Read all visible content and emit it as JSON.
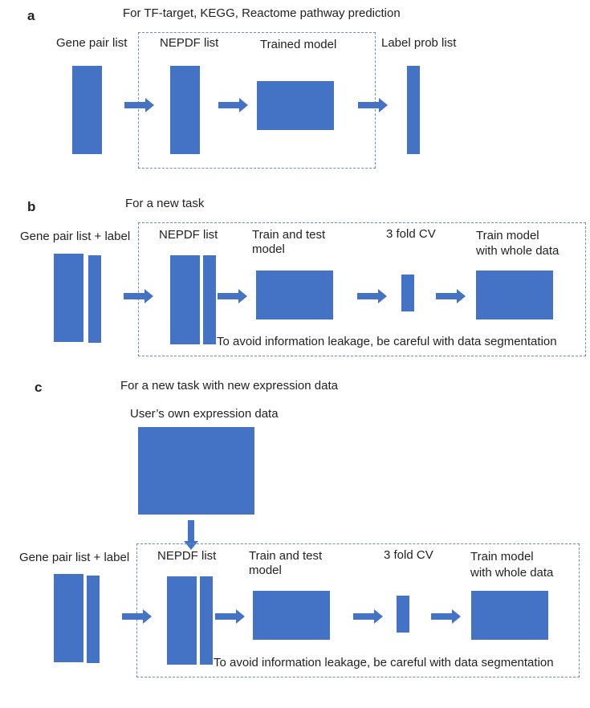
{
  "panel_a": {
    "label": "a",
    "title": "For TF-target, KEGG, Reactome pathway prediction",
    "gene_pair_list": "Gene pair list",
    "nepdf_list": "NEPDF list",
    "trained_model": "Trained model",
    "label_prob_list": "Label prob list"
  },
  "panel_b": {
    "label": "b",
    "title": "For a new task",
    "gene_pair_list": "Gene pair list + label",
    "nepdf_list": "NEPDF list",
    "train_test_1": "Train and test",
    "train_test_2": "model",
    "cv": "3 fold CV",
    "train_whole_1": "Train model",
    "train_whole_2": "with whole data",
    "note": "To avoid information leakage, be careful with data segmentation"
  },
  "panel_c": {
    "label": "c",
    "title": "For a new task with new expression data",
    "user_data": "User’s own expression data",
    "gene_pair_list": "Gene pair list + label",
    "nepdf_list": "NEPDF list",
    "train_test_1": "Train and test",
    "train_test_2": "model",
    "cv": "3 fold CV",
    "train_whole_1": "Train model",
    "train_whole_2": "with whole data",
    "note": "To avoid information leakage, be careful with data segmentation"
  },
  "colors": {
    "block": "#4472c4",
    "dash": "#6f8fbf"
  }
}
